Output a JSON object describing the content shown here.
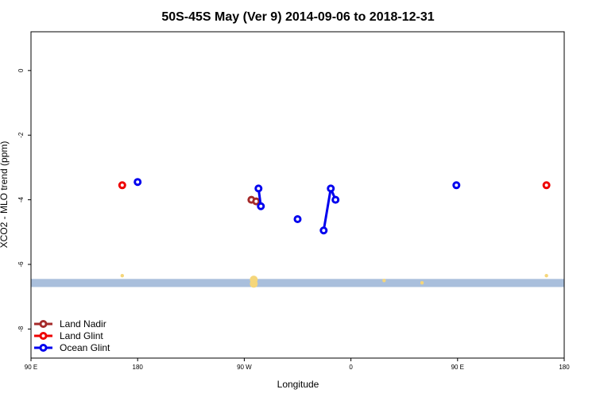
{
  "chart_data": {
    "type": "scatter",
    "title": "50S-45S May (Ver 9)   2014-09-06 to 2018-12-31",
    "xlabel": "Longitude",
    "ylabel": "XCO2 - MLO trend (ppm)",
    "xlim": [
      -90,
      360
    ],
    "ylim": [
      -8.9,
      1.2
    ],
    "x_ticks": [
      {
        "value": -90,
        "label": "90 E"
      },
      {
        "value": 0,
        "label": "180"
      },
      {
        "value": 90,
        "label": "90 W"
      },
      {
        "value": 180,
        "label": "0"
      },
      {
        "value": 270,
        "label": "90 E"
      },
      {
        "value": 360,
        "label": "180"
      }
    ],
    "y_ticks": [
      {
        "value": 0,
        "label": "0"
      },
      {
        "value": -2,
        "label": "-2"
      },
      {
        "value": -4,
        "label": "-4"
      },
      {
        "value": -6,
        "label": "-6"
      },
      {
        "value": -8,
        "label": "-8"
      }
    ],
    "land_band": {
      "ymin": -6.7,
      "ymax": -6.45,
      "color": "#a9bfdc"
    },
    "land_spots": [
      {
        "x": -13,
        "y": -6.35
      },
      {
        "x": 98,
        "y": -6.47
      },
      {
        "x": 98,
        "y": -6.6
      },
      {
        "x": 208,
        "y": -6.5
      },
      {
        "x": 240,
        "y": -6.57
      },
      {
        "x": 345,
        "y": -6.35
      }
    ],
    "legend_position": "bottom-left",
    "series": [
      {
        "name": "Land Nadir",
        "color": "#a52a2a",
        "points": [
          {
            "x": 96,
            "y": -4.0
          },
          {
            "x": 100,
            "y": -4.05
          }
        ],
        "segments": [
          [
            0,
            1
          ]
        ]
      },
      {
        "name": "Land Glint",
        "color": "#ee0000",
        "points": [
          {
            "x": -13,
            "y": -3.55
          },
          {
            "x": 345,
            "y": -3.55
          }
        ],
        "segments": []
      },
      {
        "name": "Ocean Glint",
        "color": "#0000ee",
        "points": [
          {
            "x": 0,
            "y": -3.45
          },
          {
            "x": 102,
            "y": -3.65
          },
          {
            "x": 104,
            "y": -4.2
          },
          {
            "x": 135,
            "y": -4.6
          },
          {
            "x": 157,
            "y": -4.95
          },
          {
            "x": 163,
            "y": -3.65
          },
          {
            "x": 167,
            "y": -4.0
          },
          {
            "x": 269,
            "y": -3.55
          }
        ],
        "segments": [
          [
            1,
            2
          ],
          [
            4,
            5
          ],
          [
            5,
            6
          ]
        ]
      }
    ]
  }
}
